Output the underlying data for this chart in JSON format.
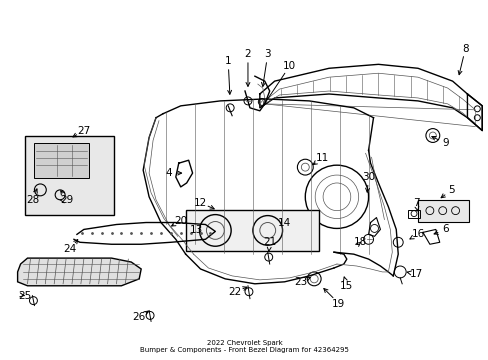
{
  "title": "2022 Chevrolet Spark\nBumper & Components - Front Bezel Diagram for 42364295",
  "background_color": "#ffffff",
  "fig_width": 4.89,
  "fig_height": 3.6,
  "dpi": 100,
  "label_fontsize": 7.5,
  "arrow_color": "#000000",
  "label_color": "#000000",
  "line_color": "#000000",
  "line_color_light": "#555555",
  "lw_main": 1.0,
  "lw_light": 0.5
}
